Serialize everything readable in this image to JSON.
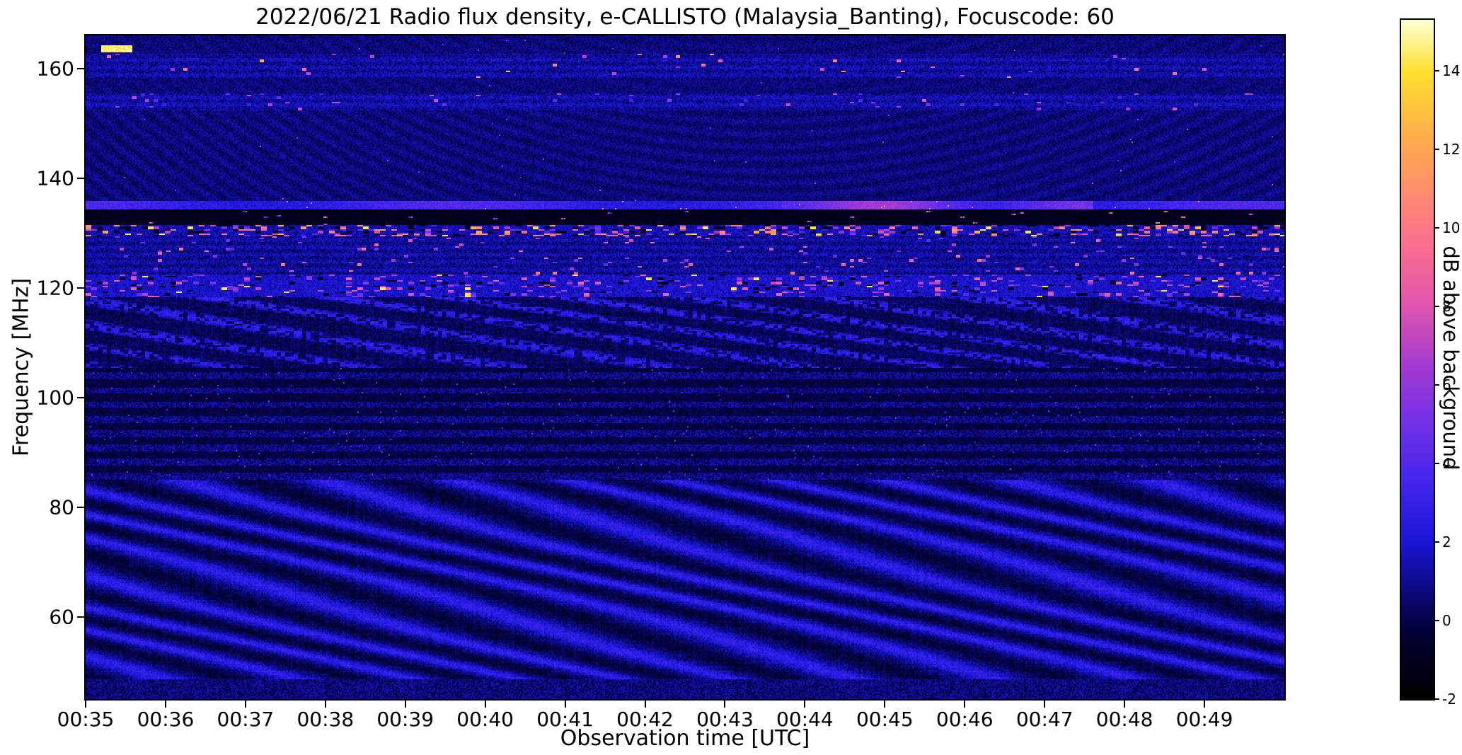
{
  "chart_data": {
    "type": "heatmap",
    "title": "2022/06/21  Radio flux density, e-CALLISTO (Malaysia_Banting), Focuscode: 60",
    "xlabel": "Observation time [UTC]",
    "ylabel": "Frequency [MHz]",
    "x_tick_labels": [
      "00:35",
      "00:36",
      "00:37",
      "00:38",
      "00:39",
      "00:40",
      "00:41",
      "00:42",
      "00:43",
      "00:44",
      "00:45",
      "00:46",
      "00:47",
      "00:48",
      "00:49"
    ],
    "x_range_minutes": [
      35,
      50
    ],
    "y_ticks": [
      60,
      80,
      100,
      120,
      140,
      160
    ],
    "y_range": [
      45,
      166
    ],
    "grid": false,
    "colorbar": {
      "label": "dB above background",
      "ticks": [
        -2,
        0,
        2,
        4,
        6,
        8,
        10,
        12,
        14
      ],
      "range": [
        -2,
        15.3
      ]
    },
    "colormap": {
      "name": "gnuplot2-like",
      "stops": [
        {
          "v": -2,
          "c": "#000000"
        },
        {
          "v": -0.5,
          "c": "#02012c"
        },
        {
          "v": 0.5,
          "c": "#0a076e"
        },
        {
          "v": 2,
          "c": "#1b16d8"
        },
        {
          "v": 3.5,
          "c": "#4325ee"
        },
        {
          "v": 5,
          "c": "#7331e8"
        },
        {
          "v": 6.5,
          "c": "#a43bd2"
        },
        {
          "v": 8,
          "c": "#e055b0"
        },
        {
          "v": 9.5,
          "c": "#fb6e92"
        },
        {
          "v": 11,
          "c": "#ff8f6d"
        },
        {
          "v": 12.5,
          "c": "#ffb347"
        },
        {
          "v": 14,
          "c": "#fde22f"
        },
        {
          "v": 15.3,
          "c": "#ffffd8"
        }
      ]
    },
    "regions": [
      {
        "type": "diagonal_stripes",
        "name": "drifting-fringe-band-low",
        "f": [
          45,
          85
        ],
        "spacing": 5.4,
        "drift": 10.0,
        "amp": 2.0,
        "wobble": 1.1
      },
      {
        "type": "speckle_rows",
        "name": "granular-horizontal-rows",
        "f": [
          85,
          105.5
        ],
        "period": 2.6,
        "amp": 2.1
      },
      {
        "type": "dotted_stripes",
        "name": "dotted-drift-band",
        "f": [
          105.5,
          118.3
        ],
        "spacing": 3.6,
        "drift": 9.0,
        "amp": 2.1
      },
      {
        "type": "bright_band",
        "name": "rfi-band-120MHz",
        "f": [
          118.3,
          122.4
        ],
        "base": 1.1,
        "speckle_p": 0.1,
        "speckle_v": [
          4,
          9
        ],
        "white_p": 0.008,
        "gap_p": 0.05
      },
      {
        "type": "noisy_band",
        "name": "band-123-129MHz",
        "f": [
          122.4,
          129.4
        ],
        "base": 0.3,
        "speckle_p": 0.03,
        "speckle_v": [
          4,
          10
        ]
      },
      {
        "type": "bright_band",
        "name": "rfi-band-130MHz",
        "f": [
          129.4,
          131.3
        ],
        "base": 0.7,
        "speckle_p": 0.22,
        "speckle_v": [
          3,
          13
        ],
        "white_p": 0.02,
        "gap_p": 0.12
      },
      {
        "type": "dark_band",
        "name": "absorption-band-132MHz",
        "f": [
          131.3,
          134.3
        ],
        "base": -1.4,
        "speckle_p": 0.012,
        "speckle_v": [
          3,
          11
        ]
      },
      {
        "type": "bright_line",
        "name": "carrier-line-135MHz",
        "f": [
          134.3,
          135.7
        ],
        "base": 2.6,
        "boost_t": [
          0.58,
          0.84
        ],
        "boost": 2.6
      },
      {
        "type": "quiet",
        "name": "quiet-137-152MHz",
        "f": [
          135.7,
          152.2
        ],
        "texture": 0.3,
        "dot_p": 0.0008
      },
      {
        "type": "noisy_band",
        "name": "band-153MHz",
        "f": [
          152.2,
          155.5
        ],
        "base": 0.5,
        "speckle_p": 0.02,
        "speckle_v": [
          3,
          8
        ]
      },
      {
        "type": "quiet",
        "name": "quiet-156MHz",
        "f": [
          155.5,
          158.2
        ],
        "texture": 0.15,
        "dot_p": 0.0003
      },
      {
        "type": "noisy_band",
        "name": "band-160MHz",
        "f": [
          158.2,
          162.7
        ],
        "base": 0.4,
        "speckle_p": 0.012,
        "speckle_v": [
          5,
          13
        ]
      },
      {
        "type": "quiet",
        "name": "top-edge-rows",
        "f": [
          162.7,
          166
        ],
        "texture": 0.2,
        "dot_p": 0.0008
      }
    ],
    "blobs": [
      {
        "name": "bright-dash-top-left",
        "t": [
          0.012,
          0.038
        ],
        "f": [
          162.9,
          164.3
        ],
        "v": 14.5
      }
    ]
  }
}
